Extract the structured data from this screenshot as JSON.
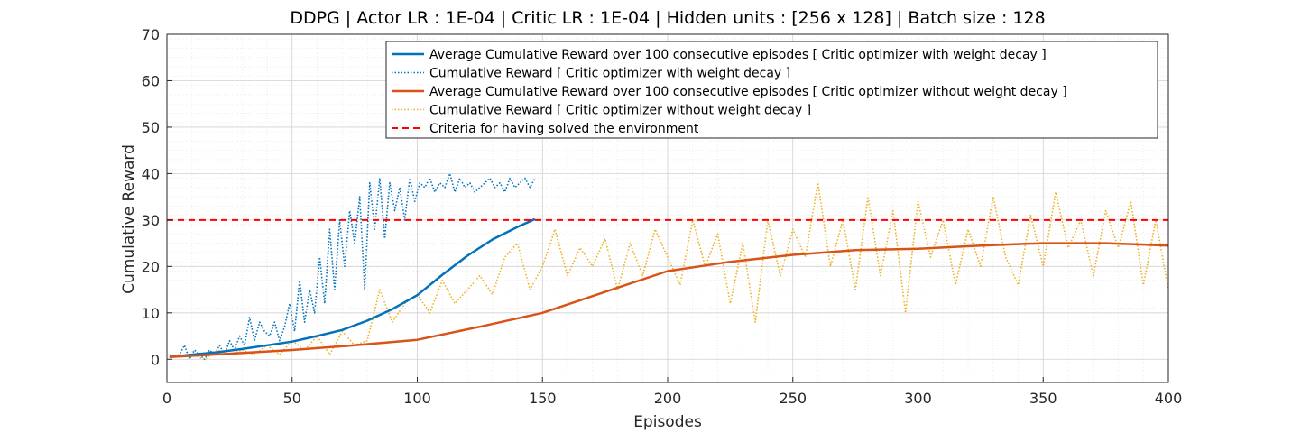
{
  "chart_data": {
    "type": "line",
    "title": "DDPG | Actor LR : 1E-04 | Critic LR : 1E-04 | Hidden units : [256 x 128] | Batch size : 128",
    "xlabel": "Episodes",
    "ylabel": "Cumulative Reward",
    "xlim": [
      0,
      400
    ],
    "ylim": [
      -5,
      70
    ],
    "xticks": [
      0,
      50,
      100,
      150,
      200,
      250,
      300,
      350,
      400
    ],
    "yticks": [
      0,
      10,
      20,
      30,
      40,
      50,
      60,
      70
    ],
    "grid": true,
    "minor_grid": true,
    "legend_position": "top-right",
    "series": [
      {
        "name": "Average Cumulative Reward over 100 consecutive episodes [ Critic optimizer with weight decay ]",
        "color": "#0072BD",
        "style": "solid",
        "x": [
          1,
          10,
          20,
          30,
          40,
          50,
          60,
          70,
          80,
          90,
          100,
          110,
          120,
          130,
          140,
          147
        ],
        "y": [
          0.5,
          1.0,
          1.5,
          2.2,
          3.0,
          3.8,
          5.0,
          6.3,
          8.3,
          10.8,
          13.8,
          18.2,
          22.3,
          25.8,
          28.5,
          30.2
        ]
      },
      {
        "name": "Cumulative Reward [ Critic optimizer with weight decay ]",
        "color": "#0072BD",
        "style": "dotted",
        "x": [
          1,
          3,
          5,
          7,
          9,
          11,
          13,
          15,
          17,
          19,
          21,
          23,
          25,
          27,
          29,
          31,
          33,
          35,
          37,
          39,
          41,
          43,
          45,
          47,
          49,
          51,
          53,
          55,
          57,
          59,
          61,
          63,
          65,
          67,
          69,
          71,
          73,
          75,
          77,
          79,
          81,
          83,
          85,
          87,
          89,
          91,
          93,
          95,
          97,
          99,
          101,
          103,
          105,
          107,
          109,
          111,
          113,
          115,
          117,
          119,
          121,
          123,
          125,
          127,
          129,
          131,
          133,
          135,
          137,
          139,
          141,
          143,
          145,
          147
        ],
        "y": [
          1,
          0.5,
          1,
          3,
          0,
          2,
          1,
          0,
          2,
          1,
          3,
          1,
          4,
          2,
          5,
          3,
          9,
          4,
          8,
          6,
          5,
          8,
          4,
          7,
          12,
          6,
          17,
          8,
          15,
          10,
          22,
          12,
          28,
          15,
          30,
          20,
          32,
          25,
          35,
          15,
          38,
          28,
          39,
          26,
          38,
          32,
          37,
          30,
          39,
          34,
          38,
          37,
          39,
          36,
          38,
          37,
          40,
          36,
          39,
          37,
          38,
          36,
          37,
          38,
          39,
          37,
          38,
          36,
          39,
          37,
          38,
          39,
          37,
          39
        ]
      },
      {
        "name": "Average Cumulative Reward over 100 consecutive episodes [ Critic optimizer without weight decay ]",
        "color": "#D95319",
        "style": "solid",
        "x": [
          1,
          25,
          50,
          75,
          100,
          125,
          150,
          175,
          200,
          225,
          250,
          275,
          300,
          325,
          350,
          375,
          400
        ],
        "y": [
          0.5,
          1.2,
          2.0,
          3.0,
          4.2,
          7.0,
          10.0,
          14.5,
          19.0,
          21.0,
          22.5,
          23.5,
          23.8,
          24.5,
          25.0,
          25.0,
          24.5
        ]
      },
      {
        "name": "Cumulative Reward [ Critic optimizer without weight decay ]",
        "color": "#EDB120",
        "style": "dotted",
        "x": [
          1,
          5,
          10,
          15,
          20,
          25,
          30,
          35,
          40,
          45,
          50,
          55,
          60,
          65,
          70,
          75,
          80,
          85,
          90,
          95,
          100,
          105,
          110,
          115,
          120,
          125,
          130,
          135,
          140,
          145,
          150,
          155,
          160,
          165,
          170,
          175,
          180,
          185,
          190,
          195,
          200,
          205,
          210,
          215,
          220,
          225,
          230,
          235,
          240,
          245,
          250,
          255,
          260,
          265,
          270,
          275,
          280,
          285,
          290,
          295,
          300,
          305,
          310,
          315,
          320,
          325,
          330,
          335,
          340,
          345,
          350,
          355,
          360,
          365,
          370,
          375,
          380,
          385,
          390,
          395,
          400
        ],
        "y": [
          1,
          0.5,
          1,
          0,
          2,
          1,
          2,
          1,
          3,
          1,
          4,
          2,
          5,
          1,
          6,
          3,
          4,
          15,
          8,
          12,
          14,
          10,
          17,
          12,
          15,
          18,
          14,
          22,
          25,
          15,
          20,
          28,
          18,
          24,
          20,
          26,
          15,
          25,
          18,
          28,
          22,
          16,
          30,
          20,
          27,
          12,
          25,
          8,
          30,
          18,
          28,
          22,
          38,
          20,
          30,
          15,
          35,
          18,
          32,
          10,
          34,
          22,
          30,
          16,
          28,
          20,
          35,
          22,
          16,
          31,
          20,
          36,
          24,
          30,
          18,
          32,
          24,
          34,
          16,
          30,
          15
        ]
      },
      {
        "name": "Criteria for having solved the environment",
        "color": "#FF0000",
        "style": "dashed",
        "x": [
          0,
          400
        ],
        "y": [
          30,
          30
        ]
      }
    ]
  }
}
